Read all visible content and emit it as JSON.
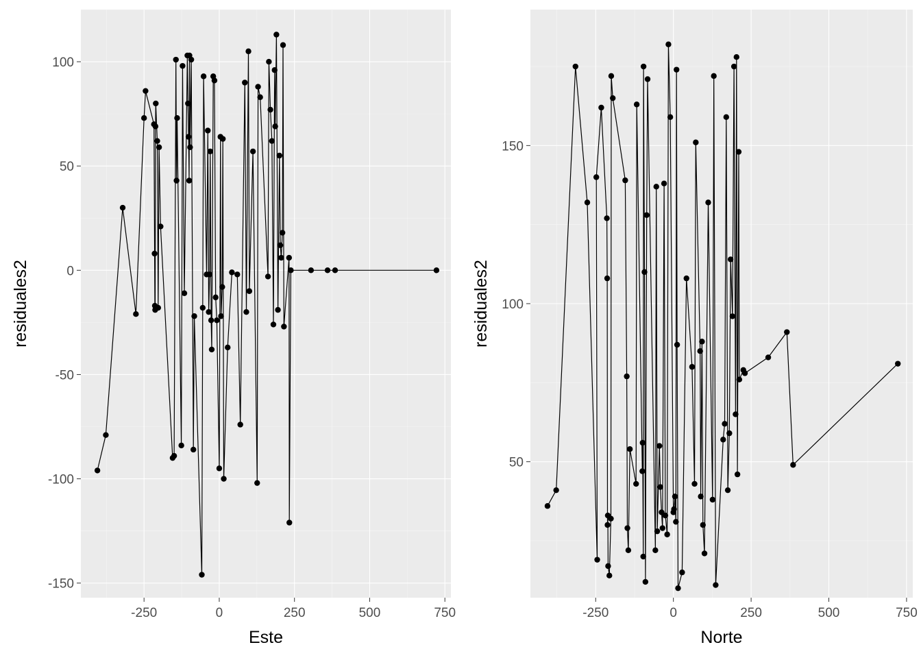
{
  "chart_data": [
    {
      "type": "line",
      "xlabel": "Este",
      "ylabel": "residuales2",
      "xlim": [
        -460,
        770
      ],
      "ylim": [
        -157,
        125
      ],
      "x_ticks": [
        -250,
        0,
        250,
        500,
        750
      ],
      "y_ticks": [
        -150,
        -100,
        -50,
        0,
        50,
        100
      ],
      "x_tick_labels": [
        "-250",
        "0",
        "250",
        "500",
        "750"
      ],
      "y_tick_labels": [
        "-150",
        "-100",
        "-50",
        "0",
        "50",
        "100"
      ],
      "grid": true,
      "points_shown": true,
      "series": [
        {
          "x": [
            -405,
            -377,
            -321,
            -277,
            -250,
            -245,
            -217,
            -215,
            -214,
            -213,
            -212,
            -211,
            -206,
            -203,
            -200,
            -195,
            -155,
            -150,
            -144,
            -142,
            -140,
            -126,
            -122,
            -116,
            -106,
            -104,
            -102,
            -100,
            -99,
            -97,
            -93,
            -86,
            -83,
            -58,
            -55,
            -52,
            -42,
            -38,
            -35,
            -32,
            -30,
            -27,
            -25,
            -20,
            -16,
            -12,
            -8,
            0,
            4,
            6,
            10,
            12,
            15,
            28,
            42,
            60,
            70,
            85,
            90,
            97,
            100,
            112,
            126,
            129,
            136,
            162,
            165,
            170,
            175,
            180,
            184,
            186,
            190,
            195,
            200,
            203,
            206,
            210,
            212,
            215,
            232,
            233,
            238,
            305,
            360,
            385,
            722
          ],
          "y": [
            -96,
            -79,
            30,
            -21,
            73,
            86,
            70,
            8,
            -17,
            -19,
            69,
            80,
            62,
            -18,
            59,
            21,
            -90,
            -89,
            101,
            43,
            73,
            -84,
            98,
            -11,
            103,
            80,
            64,
            43,
            103,
            59,
            101,
            -86,
            -22,
            -146,
            -18,
            93,
            -2,
            67,
            -20,
            -2,
            57,
            -24,
            -38,
            93,
            91,
            -13,
            -24,
            -95,
            64,
            -22,
            -8,
            63,
            -100,
            -37,
            -1,
            -2,
            -74,
            90,
            -20,
            105,
            -10,
            57,
            -102,
            88,
            83,
            -3,
            100,
            77,
            62,
            -26,
            96,
            69,
            113,
            -19,
            55,
            12,
            6,
            18,
            108,
            -27,
            6,
            -121,
            0,
            0,
            0,
            0,
            0
          ]
        }
      ]
    },
    {
      "type": "line",
      "xlabel": "Norte",
      "ylabel": "residuales2",
      "xlim": [
        -460,
        770
      ],
      "ylim": [
        7,
        193
      ],
      "x_ticks": [
        -250,
        0,
        250,
        500,
        750
      ],
      "y_ticks": [
        50,
        100,
        150
      ],
      "x_tick_labels": [
        "-250",
        "0",
        "250",
        "500",
        "750"
      ],
      "y_tick_labels": [
        "50",
        "100",
        "150"
      ],
      "grid": true,
      "points_shown": true,
      "series": [
        {
          "x": [
            -405,
            -377,
            -315,
            -277,
            -245,
            -248,
            -232,
            -214,
            -213,
            -212,
            -211,
            -210,
            -206,
            -201,
            -200,
            -195,
            -155,
            -150,
            -148,
            -145,
            -140,
            -120,
            -118,
            -100,
            -99,
            -97,
            -96,
            -93,
            -90,
            -86,
            -83,
            -58,
            -55,
            -52,
            -45,
            -42,
            -38,
            -35,
            -30,
            -26,
            -20,
            -16,
            -10,
            0,
            2,
            5,
            8,
            10,
            12,
            15,
            28,
            42,
            60,
            68,
            72,
            86,
            88,
            92,
            95,
            100,
            112,
            126,
            130,
            136,
            160,
            165,
            170,
            175,
            180,
            184,
            190,
            195,
            200,
            203,
            206,
            210,
            212,
            225,
            230,
            305,
            365,
            385,
            722
          ],
          "y": [
            36,
            41,
            175,
            132,
            19,
            140,
            162,
            127,
            108,
            30,
            33,
            17,
            14,
            32,
            172,
            165,
            139,
            77,
            29,
            22,
            54,
            43,
            163,
            47,
            56,
            20,
            175,
            110,
            12,
            128,
            171,
            22,
            137,
            28,
            55,
            42,
            34,
            29,
            138,
            33,
            27,
            182,
            159,
            34,
            35,
            39,
            31,
            174,
            87,
            10,
            15,
            108,
            80,
            43,
            151,
            85,
            39,
            88,
            30,
            21,
            132,
            38,
            172,
            11,
            57,
            62,
            159,
            41,
            59,
            114,
            96,
            175,
            65,
            178,
            46,
            148,
            76,
            79,
            78,
            83,
            91,
            49,
            81
          ]
        }
      ]
    }
  ]
}
